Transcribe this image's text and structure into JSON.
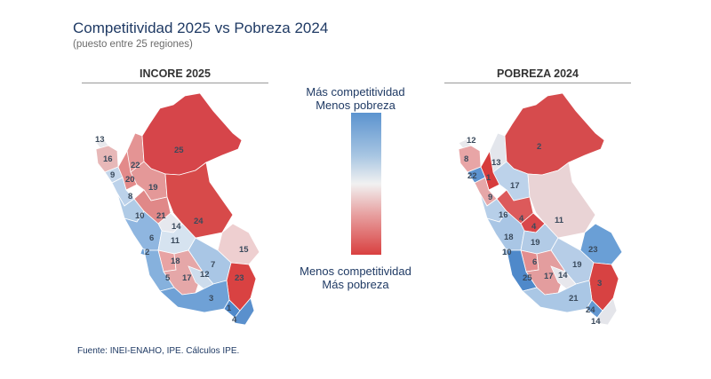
{
  "title": "Competitividad 2025 vs Pobreza 2024",
  "subtitle": "(puesto entre 25 regiones)",
  "left_panel": {
    "title": "INCORE 2025",
    "labels": [
      "13",
      "16",
      "22",
      "9",
      "20",
      "25",
      "8",
      "19",
      "10",
      "21",
      "24",
      "14",
      "6",
      "11",
      "15",
      "2",
      "18",
      "7",
      "5",
      "17",
      "12",
      "23",
      "3",
      "1",
      "4"
    ]
  },
  "right_panel": {
    "title": "POBREZA 2024",
    "labels": [
      "12",
      "8",
      "2",
      "13",
      "22",
      "1",
      "17",
      "9",
      "16",
      "4",
      "4",
      "11",
      "18",
      "19",
      "23",
      "10",
      "6",
      "19",
      "25",
      "17",
      "14",
      "3",
      "21",
      "24",
      "14"
    ]
  },
  "legend": {
    "top_line1": "Más competitividad",
    "top_line2": "Menos pobreza",
    "bottom_line1": "Menos competitividad",
    "bottom_line2": "Más pobreza",
    "color_top": "#5b93cf",
    "color_mid": "#f1f1f1",
    "color_bottom": "#d94040"
  },
  "source": "Fuente: INEI-ENAHO, IPE. Cálculos IPE."
}
